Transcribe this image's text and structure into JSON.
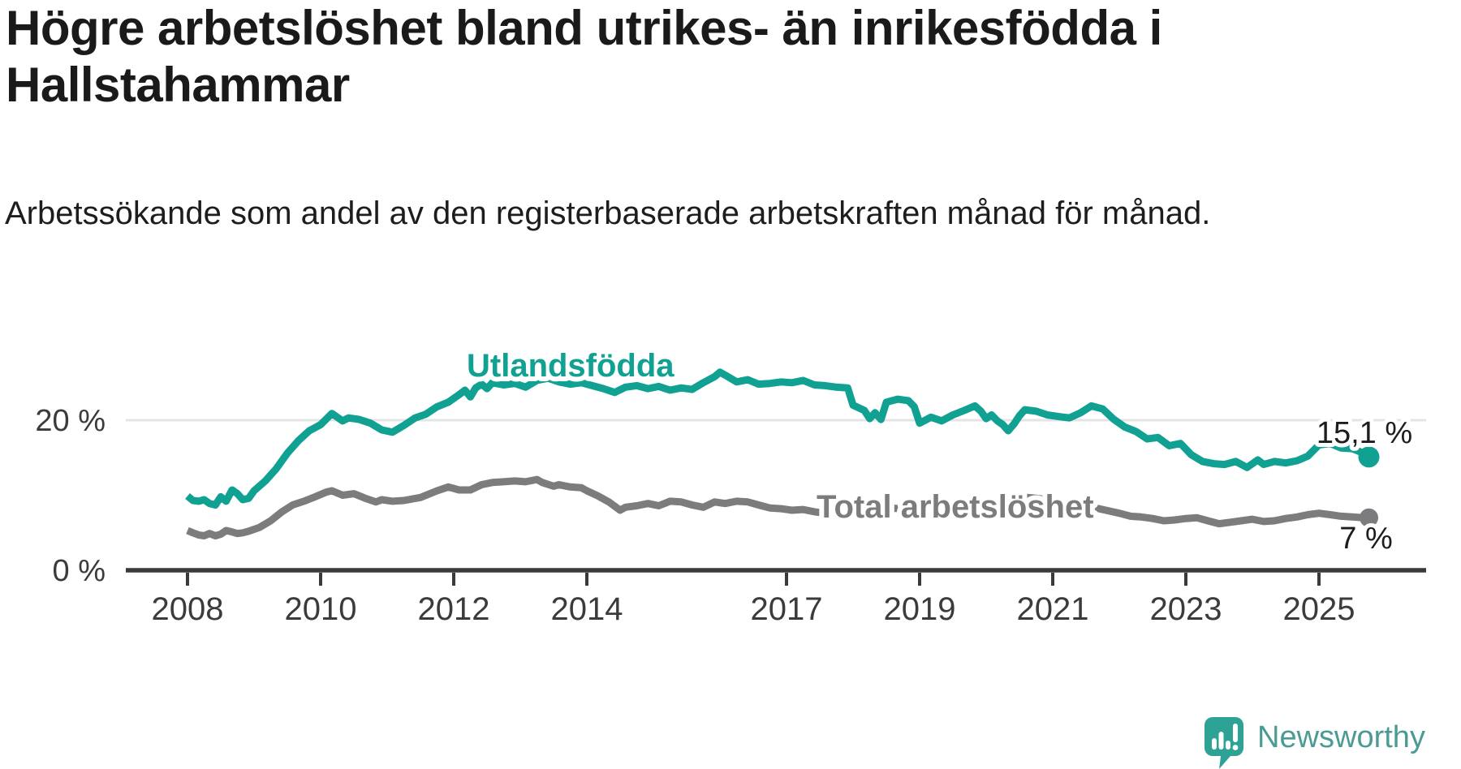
{
  "title": "Högre arbetslöshet bland utrikes- än inrikesfödda i Hallstahammar",
  "subtitle": "Arbetssökande som andel av den registerbaserade arbetskraften månad för månad.",
  "branding": {
    "name": "Newsworthy",
    "logo_icon": "speech-bubble-bar-chart",
    "logo_color": "#2ea395",
    "text_color": "#4a9b94"
  },
  "colors": {
    "axis": "#3a3a3a",
    "grid": "#e4e4e4",
    "tick_label": "#3b3b3b",
    "value_label": "#1d1d1d",
    "background": "#ffffff"
  },
  "chart_data": {
    "type": "line",
    "unit": "%",
    "grid": "single horizontal gridline at 20 %",
    "legend_position": "inline labels on lines",
    "x_axis": {
      "range": [
        2007.05,
        2026.6
      ],
      "ticks": [
        {
          "year": 2008,
          "label": "2008"
        },
        {
          "year": 2010,
          "label": "2010"
        },
        {
          "year": 2012,
          "label": "2012"
        },
        {
          "year": 2014,
          "label": "2014"
        },
        {
          "year": 2017,
          "label": "2017"
        },
        {
          "year": 2019,
          "label": "2019"
        },
        {
          "year": 2021,
          "label": "2021"
        },
        {
          "year": 2023,
          "label": "2023"
        },
        {
          "year": 2025,
          "label": "2025"
        }
      ]
    },
    "y_axis": {
      "range": [
        0,
        30
      ],
      "gridlines": [
        20
      ],
      "ticks": [
        {
          "value": 20,
          "label": "20 %"
        },
        {
          "value": 0,
          "label": "0 %"
        }
      ]
    },
    "series": [
      {
        "name": "Utlandsfödda",
        "color": "#10a192",
        "end_label": "15,1 %",
        "end_value": 15.1,
        "points": [
          [
            2008.0,
            9.9
          ],
          [
            2008.08,
            9.3
          ],
          [
            2008.17,
            9.2
          ],
          [
            2008.25,
            9.4
          ],
          [
            2008.33,
            8.9
          ],
          [
            2008.42,
            8.7
          ],
          [
            2008.5,
            9.8
          ],
          [
            2008.58,
            9.2
          ],
          [
            2008.67,
            10.7
          ],
          [
            2008.75,
            10.2
          ],
          [
            2008.83,
            9.4
          ],
          [
            2008.92,
            9.6
          ],
          [
            2009.0,
            10.6
          ],
          [
            2009.17,
            11.9
          ],
          [
            2009.33,
            13.5
          ],
          [
            2009.5,
            15.6
          ],
          [
            2009.67,
            17.3
          ],
          [
            2009.83,
            18.6
          ],
          [
            2010.0,
            19.4
          ],
          [
            2010.17,
            20.9
          ],
          [
            2010.25,
            20.4
          ],
          [
            2010.33,
            19.9
          ],
          [
            2010.42,
            20.3
          ],
          [
            2010.58,
            20.1
          ],
          [
            2010.75,
            19.6
          ],
          [
            2010.92,
            18.7
          ],
          [
            2011.08,
            18.4
          ],
          [
            2011.25,
            19.3
          ],
          [
            2011.42,
            20.3
          ],
          [
            2011.58,
            20.8
          ],
          [
            2011.75,
            21.8
          ],
          [
            2011.92,
            22.4
          ],
          [
            2012.08,
            23.4
          ],
          [
            2012.17,
            24.0
          ],
          [
            2012.25,
            23.1
          ],
          [
            2012.33,
            24.3
          ],
          [
            2012.42,
            24.8
          ],
          [
            2012.5,
            24.2
          ],
          [
            2012.58,
            25.0
          ],
          [
            2012.75,
            24.7
          ],
          [
            2012.92,
            24.9
          ],
          [
            2013.08,
            24.4
          ],
          [
            2013.25,
            25.3
          ],
          [
            2013.42,
            25.6
          ],
          [
            2013.58,
            25.1
          ],
          [
            2013.75,
            24.8
          ],
          [
            2013.92,
            25.0
          ],
          [
            2014.08,
            24.6
          ],
          [
            2014.25,
            24.2
          ],
          [
            2014.42,
            23.7
          ],
          [
            2014.58,
            24.4
          ],
          [
            2014.75,
            24.6
          ],
          [
            2014.92,
            24.2
          ],
          [
            2015.08,
            24.5
          ],
          [
            2015.25,
            24.0
          ],
          [
            2015.42,
            24.3
          ],
          [
            2015.58,
            24.1
          ],
          [
            2015.75,
            25.0
          ],
          [
            2015.92,
            25.8
          ],
          [
            2016.0,
            26.4
          ],
          [
            2016.08,
            26.0
          ],
          [
            2016.25,
            25.1
          ],
          [
            2016.42,
            25.4
          ],
          [
            2016.58,
            24.8
          ],
          [
            2016.75,
            24.9
          ],
          [
            2016.92,
            25.1
          ],
          [
            2017.08,
            25.0
          ],
          [
            2017.25,
            25.3
          ],
          [
            2017.42,
            24.7
          ],
          [
            2017.58,
            24.6
          ],
          [
            2017.75,
            24.4
          ],
          [
            2017.92,
            24.3
          ],
          [
            2018.0,
            22.0
          ],
          [
            2018.17,
            21.3
          ],
          [
            2018.25,
            20.2
          ],
          [
            2018.33,
            21.0
          ],
          [
            2018.42,
            20.1
          ],
          [
            2018.5,
            22.4
          ],
          [
            2018.67,
            22.8
          ],
          [
            2018.83,
            22.6
          ],
          [
            2018.92,
            21.8
          ],
          [
            2019.0,
            19.6
          ],
          [
            2019.17,
            20.4
          ],
          [
            2019.33,
            19.9
          ],
          [
            2019.5,
            20.7
          ],
          [
            2019.67,
            21.3
          ],
          [
            2019.83,
            21.9
          ],
          [
            2019.92,
            21.2
          ],
          [
            2020.0,
            20.2
          ],
          [
            2020.08,
            20.7
          ],
          [
            2020.17,
            19.9
          ],
          [
            2020.25,
            19.4
          ],
          [
            2020.33,
            18.6
          ],
          [
            2020.42,
            19.5
          ],
          [
            2020.5,
            20.6
          ],
          [
            2020.58,
            21.4
          ],
          [
            2020.75,
            21.2
          ],
          [
            2020.92,
            20.7
          ],
          [
            2021.08,
            20.5
          ],
          [
            2021.25,
            20.3
          ],
          [
            2021.42,
            21.0
          ],
          [
            2021.58,
            21.9
          ],
          [
            2021.75,
            21.5
          ],
          [
            2021.92,
            20.1
          ],
          [
            2022.08,
            19.1
          ],
          [
            2022.25,
            18.5
          ],
          [
            2022.42,
            17.5
          ],
          [
            2022.58,
            17.7
          ],
          [
            2022.75,
            16.6
          ],
          [
            2022.92,
            16.9
          ],
          [
            2023.08,
            15.4
          ],
          [
            2023.25,
            14.5
          ],
          [
            2023.42,
            14.2
          ],
          [
            2023.58,
            14.1
          ],
          [
            2023.75,
            14.5
          ],
          [
            2023.92,
            13.7
          ],
          [
            2024.08,
            14.7
          ],
          [
            2024.17,
            14.1
          ],
          [
            2024.33,
            14.5
          ],
          [
            2024.5,
            14.3
          ],
          [
            2024.67,
            14.6
          ],
          [
            2024.83,
            15.2
          ],
          [
            2025.0,
            16.7
          ],
          [
            2025.17,
            16.9
          ],
          [
            2025.33,
            16.3
          ],
          [
            2025.5,
            16.2
          ],
          [
            2025.67,
            15.6
          ],
          [
            2025.75,
            15.1
          ]
        ]
      },
      {
        "name": "Total arbetslöshet",
        "color": "#7c7c7e",
        "end_label": "7 %",
        "end_value": 7,
        "points": [
          [
            2008.0,
            5.3
          ],
          [
            2008.08,
            5.0
          ],
          [
            2008.17,
            4.7
          ],
          [
            2008.25,
            4.6
          ],
          [
            2008.33,
            4.9
          ],
          [
            2008.42,
            4.6
          ],
          [
            2008.5,
            4.8
          ],
          [
            2008.58,
            5.3
          ],
          [
            2008.67,
            5.1
          ],
          [
            2008.75,
            4.9
          ],
          [
            2008.83,
            5.0
          ],
          [
            2008.92,
            5.2
          ],
          [
            2009.08,
            5.7
          ],
          [
            2009.25,
            6.6
          ],
          [
            2009.42,
            7.8
          ],
          [
            2009.58,
            8.7
          ],
          [
            2009.75,
            9.2
          ],
          [
            2009.92,
            9.8
          ],
          [
            2010.08,
            10.4
          ],
          [
            2010.17,
            10.6
          ],
          [
            2010.33,
            10.0
          ],
          [
            2010.5,
            10.2
          ],
          [
            2010.67,
            9.6
          ],
          [
            2010.83,
            9.1
          ],
          [
            2010.92,
            9.4
          ],
          [
            2011.08,
            9.2
          ],
          [
            2011.25,
            9.3
          ],
          [
            2011.5,
            9.7
          ],
          [
            2011.75,
            10.6
          ],
          [
            2011.92,
            11.1
          ],
          [
            2012.08,
            10.7
          ],
          [
            2012.25,
            10.7
          ],
          [
            2012.42,
            11.4
          ],
          [
            2012.58,
            11.7
          ],
          [
            2012.75,
            11.8
          ],
          [
            2012.92,
            11.9
          ],
          [
            2013.08,
            11.8
          ],
          [
            2013.25,
            12.1
          ],
          [
            2013.33,
            11.7
          ],
          [
            2013.5,
            11.2
          ],
          [
            2013.58,
            11.4
          ],
          [
            2013.75,
            11.1
          ],
          [
            2013.92,
            11.0
          ],
          [
            2014.0,
            10.6
          ],
          [
            2014.17,
            9.9
          ],
          [
            2014.33,
            9.1
          ],
          [
            2014.5,
            8.0
          ],
          [
            2014.58,
            8.4
          ],
          [
            2014.75,
            8.6
          ],
          [
            2014.92,
            8.9
          ],
          [
            2015.08,
            8.6
          ],
          [
            2015.25,
            9.2
          ],
          [
            2015.42,
            9.1
          ],
          [
            2015.58,
            8.7
          ],
          [
            2015.75,
            8.4
          ],
          [
            2015.92,
            9.1
          ],
          [
            2016.08,
            8.9
          ],
          [
            2016.25,
            9.2
          ],
          [
            2016.42,
            9.1
          ],
          [
            2016.58,
            8.7
          ],
          [
            2016.75,
            8.3
          ],
          [
            2016.92,
            8.2
          ],
          [
            2017.08,
            8.0
          ],
          [
            2017.25,
            8.1
          ],
          [
            2017.42,
            7.8
          ],
          [
            2017.58,
            7.6
          ],
          [
            2017.75,
            7.7
          ],
          [
            2018.0,
            7.9
          ],
          [
            2018.25,
            8.1
          ],
          [
            2018.5,
            8.3
          ],
          [
            2018.75,
            8.2
          ],
          [
            2019.0,
            8.0
          ],
          [
            2019.25,
            8.1
          ],
          [
            2019.5,
            8.3
          ],
          [
            2019.75,
            8.5
          ],
          [
            2020.0,
            8.8
          ],
          [
            2020.25,
            9.3
          ],
          [
            2020.5,
            9.8
          ],
          [
            2020.75,
            9.6
          ],
          [
            2021.0,
            9.3
          ],
          [
            2021.25,
            9.0
          ],
          [
            2021.5,
            8.6
          ],
          [
            2021.75,
            8.1
          ],
          [
            2022.0,
            7.6
          ],
          [
            2022.17,
            7.2
          ],
          [
            2022.33,
            7.1
          ],
          [
            2022.5,
            6.9
          ],
          [
            2022.67,
            6.6
          ],
          [
            2022.83,
            6.7
          ],
          [
            2023.0,
            6.9
          ],
          [
            2023.17,
            7.0
          ],
          [
            2023.33,
            6.6
          ],
          [
            2023.5,
            6.2
          ],
          [
            2023.67,
            6.4
          ],
          [
            2023.83,
            6.6
          ],
          [
            2024.0,
            6.8
          ],
          [
            2024.17,
            6.5
          ],
          [
            2024.33,
            6.6
          ],
          [
            2024.5,
            6.9
          ],
          [
            2024.67,
            7.1
          ],
          [
            2024.83,
            7.4
          ],
          [
            2025.0,
            7.6
          ],
          [
            2025.17,
            7.4
          ],
          [
            2025.33,
            7.2
          ],
          [
            2025.5,
            7.1
          ],
          [
            2025.67,
            7.0
          ],
          [
            2025.75,
            7.0
          ]
        ]
      }
    ]
  }
}
